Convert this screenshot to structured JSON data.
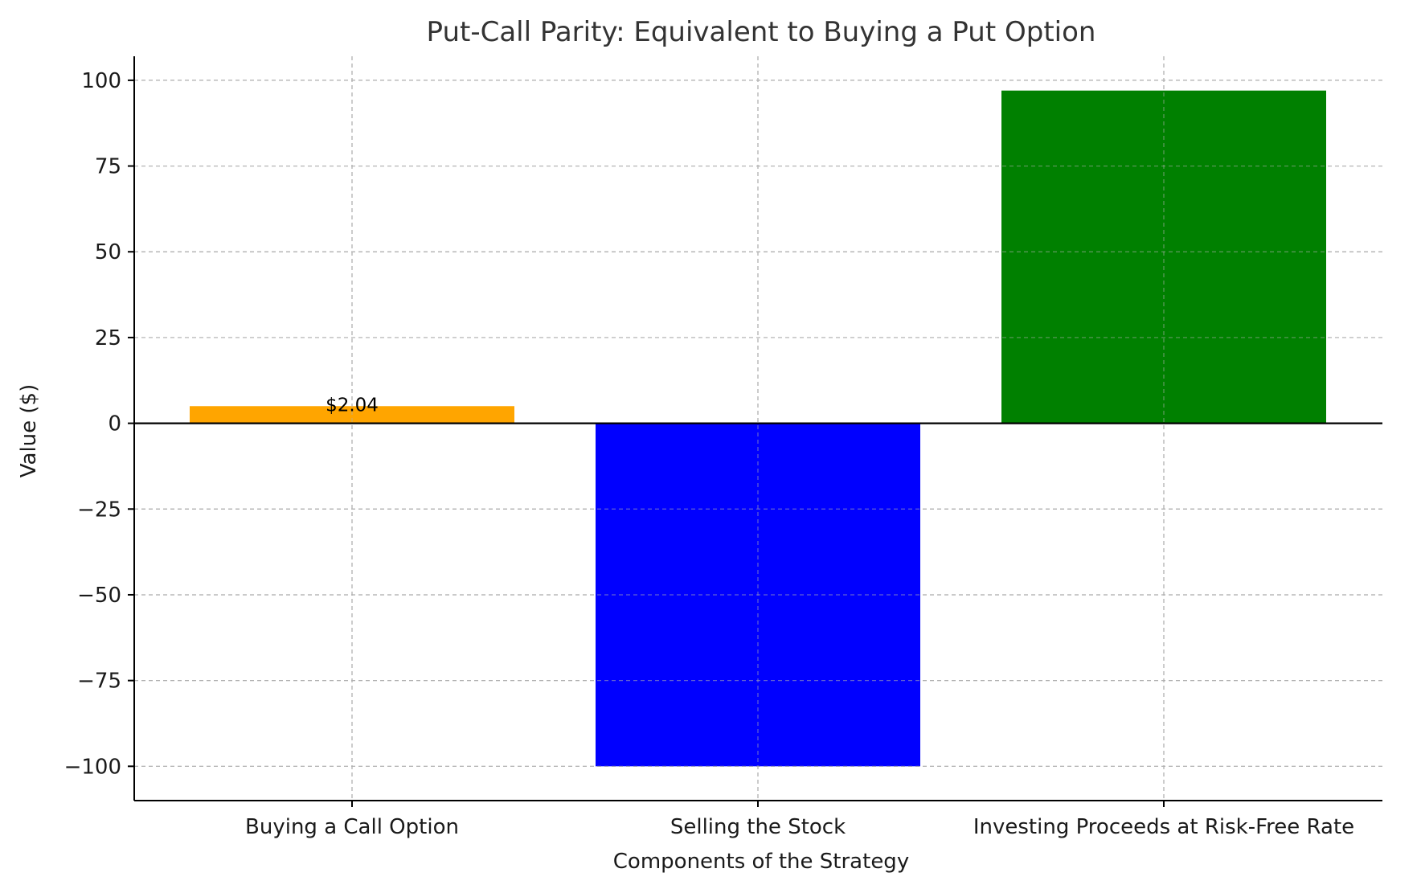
{
  "chart_data": {
    "type": "bar",
    "title": "Put-Call Parity: Equivalent to Buying a Put Option",
    "xlabel": "Components of the Strategy",
    "ylabel": "Value ($)",
    "categories": [
      "Buying a Call Option",
      "Selling the Stock",
      "Investing Proceeds at Risk-Free Rate"
    ],
    "values": [
      5,
      -100,
      97
    ],
    "colors": [
      "#ffa500",
      "#0000ff",
      "#008000"
    ],
    "data_labels": [
      "$2.04",
      "",
      ""
    ],
    "ylim": [
      -110,
      107
    ],
    "yticks": [
      -100,
      -75,
      -50,
      -25,
      0,
      25,
      50,
      75,
      100
    ],
    "ytick_labels": [
      "−100",
      "−75",
      "−50",
      "−25",
      "0",
      "25",
      "50",
      "75",
      "100"
    ],
    "grid": true,
    "zero_line": true
  }
}
